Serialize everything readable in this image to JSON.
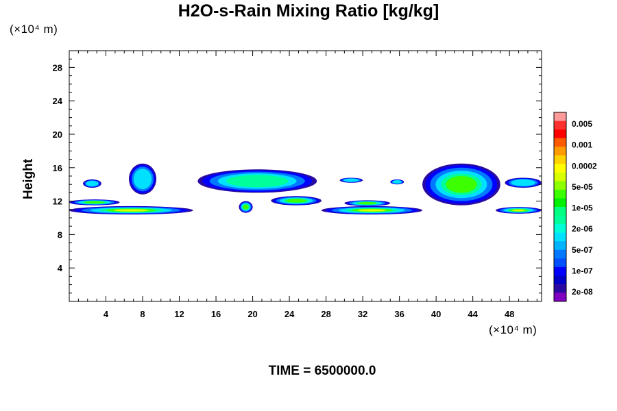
{
  "chart_data": {
    "type": "heatmap",
    "title": "H2O-s-Rain Mixing Ratio [kg/kg]",
    "ylabel": "Height",
    "y_unit": "(×10⁴ m)",
    "x_unit": "(×10⁴ m)",
    "xlim": [
      0,
      51.5
    ],
    "ylim": [
      0,
      30
    ],
    "x_ticks": [
      4,
      8,
      12,
      16,
      20,
      24,
      28,
      32,
      36,
      40,
      44,
      48
    ],
    "y_ticks": [
      4,
      8,
      12,
      16,
      20,
      24,
      28
    ],
    "colorbar": {
      "labels": [
        "0.005",
        "0.001",
        "0.0002",
        "5e-05",
        "1e-05",
        "2e-06",
        "5e-07",
        "1e-07",
        "2e-08"
      ],
      "colors": [
        "#ff9a9a",
        "#ff3030",
        "#ff0000",
        "#ff5a00",
        "#ff9a00",
        "#ffd200",
        "#ffff00",
        "#d8ff00",
        "#8cff00",
        "#3cff00",
        "#00f000",
        "#00ff80",
        "#00ff9a",
        "#00ffd8",
        "#00e0ff",
        "#00b4ff",
        "#0078ff",
        "#0050ff",
        "#0000ff",
        "#0000c8",
        "#2a0aa0",
        "#8000c0"
      ]
    },
    "rain_regions": [
      {
        "x": [
          1.5,
          3.5
        ],
        "y": [
          13.6,
          14.6
        ],
        "level": 1
      },
      {
        "x": [
          6.5,
          9.5
        ],
        "y": [
          12.8,
          16.5
        ],
        "level": 1
      },
      {
        "x": [
          14.0,
          27.0
        ],
        "y": [
          13.0,
          15.8
        ],
        "level": 2
      },
      {
        "x": [
          29.5,
          32.0
        ],
        "y": [
          14.2,
          14.8
        ],
        "level": 1
      },
      {
        "x": [
          35.0,
          36.5
        ],
        "y": [
          14.0,
          14.6
        ],
        "level": 1
      },
      {
        "x": [
          38.5,
          47.0
        ],
        "y": [
          11.5,
          16.5
        ],
        "level": 3
      },
      {
        "x": [
          47.5,
          51.5
        ],
        "y": [
          13.6,
          14.8
        ],
        "level": 1
      },
      {
        "x": [
          0.0,
          5.5
        ],
        "y": [
          11.5,
          12.2
        ],
        "level": 3
      },
      {
        "x": [
          0.0,
          13.5
        ],
        "y": [
          10.4,
          11.4
        ],
        "level": 4
      },
      {
        "x": [
          18.5,
          20.0
        ],
        "y": [
          10.6,
          12.0
        ],
        "level": 3
      },
      {
        "x": [
          22.0,
          27.5
        ],
        "y": [
          11.5,
          12.6
        ],
        "level": 3
      },
      {
        "x": [
          27.5,
          38.5
        ],
        "y": [
          10.4,
          11.4
        ],
        "level": 4
      },
      {
        "x": [
          30.0,
          35.0
        ],
        "y": [
          11.4,
          12.1
        ],
        "level": 3
      },
      {
        "x": [
          46.5,
          51.5
        ],
        "y": [
          10.5,
          11.3
        ],
        "level": 4
      }
    ]
  },
  "footer": {
    "time_label": "TIME = 6500000.0"
  }
}
